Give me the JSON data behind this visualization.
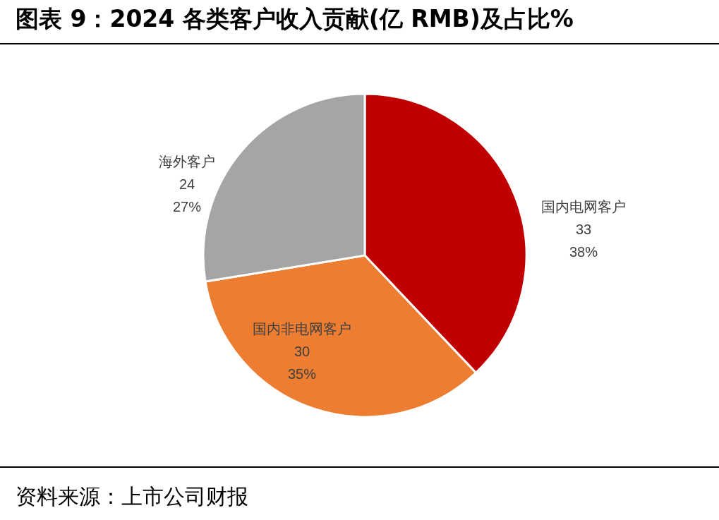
{
  "chart_data": {
    "type": "pie",
    "title": "图表 9：2024 各类客户收入贡献(亿 RMB)及占比%",
    "categories": [
      "国内电网客户",
      "国内非电网客户",
      "海外客户"
    ],
    "values": [
      33,
      30,
      24
    ],
    "colors": [
      "#c00000",
      "#ed7d31",
      "#a5a5a5"
    ],
    "value_labels": [
      "33\n38%",
      "30\n35%",
      "24\n27%"
    ],
    "annotations": [
      "资料来源：上市公司财报"
    ]
  }
}
